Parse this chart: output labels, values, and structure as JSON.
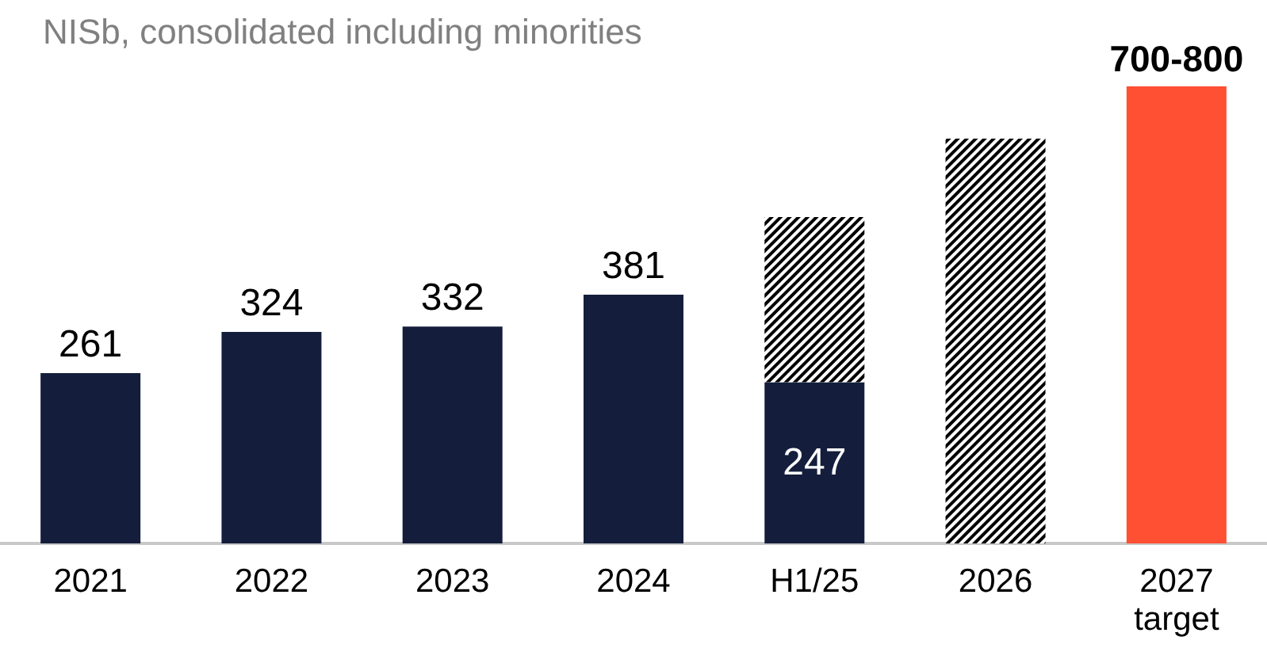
{
  "chart_data": {
    "type": "bar",
    "title": "NISb, consolidated including minorities",
    "categories": [
      "2021",
      "2022",
      "2023",
      "2024",
      "H1/25",
      "2026",
      "2027\ntarget"
    ],
    "stacked": true,
    "series": [
      {
        "color": "#141e3c",
        "values": [
          261,
          324,
          332,
          381,
          247,
          null,
          null
        ],
        "value_labels": [
          "261",
          "324",
          "332",
          "381",
          "247",
          null,
          null
        ]
      },
      {
        "type": "bar",
        "color": "#000000",
        "values": [
          null,
          null,
          null,
          null,
          253,
          620,
          null
        ]
      },
      {
        "color": "#ff5033",
        "values": [
          null,
          null,
          null,
          null,
          null,
          null,
          700
        ],
        "value_labels": [
          null,
          null,
          null,
          null,
          null,
          null,
          "700-800"
        ]
      }
    ]
  }
}
